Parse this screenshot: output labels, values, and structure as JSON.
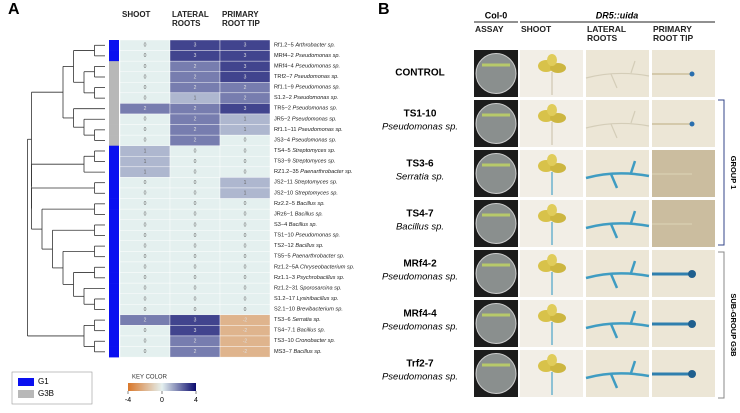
{
  "panel_a": {
    "label": "A",
    "columns": [
      "SHOOT",
      "LATERAL ROOTS",
      "PRIMARY ROOT TIP"
    ],
    "rows": [
      {
        "id": "Rf1.2−5",
        "taxon": "Arthrobacter sp.",
        "group": "G1",
        "values": [
          0,
          3,
          3
        ]
      },
      {
        "id": "MRf4−2",
        "taxon": "Pseudomonas sp.",
        "group": "G1",
        "values": [
          0,
          3,
          3
        ]
      },
      {
        "id": "MRf4−4",
        "taxon": "Pseudomonas sp.",
        "group": "G3B",
        "values": [
          0,
          2,
          3
        ]
      },
      {
        "id": "TRf2−7",
        "taxon": "Pseudomonas sp.",
        "group": "G3B",
        "values": [
          0,
          2,
          3
        ]
      },
      {
        "id": "Rf1.1−9",
        "taxon": "Pseudomonas sp.",
        "group": "G3B",
        "values": [
          0,
          2,
          2
        ]
      },
      {
        "id": "S1.2−2",
        "taxon": "Pseudomonas sp.",
        "group": "G3B",
        "values": [
          0,
          1,
          2
        ]
      },
      {
        "id": "TR5−2",
        "taxon": "Pseudomonas sp.",
        "group": "G3B",
        "values": [
          2,
          2,
          3
        ]
      },
      {
        "id": "JR5−2",
        "taxon": "Pseudomonas sp.",
        "group": "G3B",
        "values": [
          0,
          2,
          1
        ]
      },
      {
        "id": "Rf1.1−11",
        "taxon": "Pseudomonas sp.",
        "group": "G3B",
        "values": [
          0,
          2,
          1
        ]
      },
      {
        "id": "JS3−4",
        "taxon": "Pseudomonas sp.",
        "group": "G3B",
        "values": [
          0,
          2,
          0
        ]
      },
      {
        "id": "TS4−5",
        "taxon": "Streptomyces sp.",
        "group": "G1",
        "values": [
          1,
          0,
          0
        ]
      },
      {
        "id": "TS3−9",
        "taxon": "Streptomyces sp.",
        "group": "G1",
        "values": [
          1,
          0,
          0
        ]
      },
      {
        "id": "RZ1.2−35",
        "taxon": "Paenarthrobacter sp.",
        "group": "G1",
        "values": [
          1,
          0,
          0
        ]
      },
      {
        "id": "JS2−11",
        "taxon": "Streptomyces sp.",
        "group": "G1",
        "values": [
          0,
          0,
          1
        ]
      },
      {
        "id": "JS2−10",
        "taxon": "Streptomyces sp.",
        "group": "G1",
        "values": [
          0,
          0,
          1
        ]
      },
      {
        "id": "Rz2.2−5",
        "taxon": "Bacillus sp.",
        "group": "G1",
        "values": [
          0,
          0,
          0
        ]
      },
      {
        "id": "JRz6−1",
        "taxon": "Bacillus sp.",
        "group": "G1",
        "values": [
          0,
          0,
          0
        ]
      },
      {
        "id": "S3−4",
        "taxon": "Bacillus sp.",
        "group": "G1",
        "values": [
          0,
          0,
          0
        ]
      },
      {
        "id": "TS1−10",
        "taxon": "Pseudomonas sp.",
        "group": "G1",
        "values": [
          0,
          0,
          0
        ]
      },
      {
        "id": "TS2−12",
        "taxon": "Bacillus sp.",
        "group": "G1",
        "values": [
          0,
          0,
          0
        ]
      },
      {
        "id": "TS5−5",
        "taxon": "Paenarthrobacter sp.",
        "group": "G1",
        "values": [
          0,
          0,
          0
        ]
      },
      {
        "id": "Rz1.2−5A",
        "taxon": "Chryseobacterium sp.",
        "group": "G1",
        "values": [
          0,
          0,
          0
        ]
      },
      {
        "id": "Rz1.1−3",
        "taxon": "Psychrobacillus sp.",
        "group": "G1",
        "values": [
          0,
          0,
          0
        ]
      },
      {
        "id": "Rz1.2−31",
        "taxon": "Sporosarcina sp.",
        "group": "G1",
        "values": [
          0,
          0,
          0
        ]
      },
      {
        "id": "S1.2−17",
        "taxon": "Lysinibacillus sp.",
        "group": "G1",
        "values": [
          0,
          0,
          0
        ]
      },
      {
        "id": "S2.1−10",
        "taxon": "Brevibacterium sp.",
        "group": "G1",
        "values": [
          0,
          0,
          0
        ]
      },
      {
        "id": "TS3−6",
        "taxon": "Serratia sp.",
        "group": "G1",
        "values": [
          2,
          3,
          -2
        ]
      },
      {
        "id": "TS4−7.1",
        "taxon": "Bacillus sp.",
        "group": "G1",
        "values": [
          0,
          3,
          -2
        ]
      },
      {
        "id": "TS3−10",
        "taxon": "Cronobacter sp.",
        "group": "G1",
        "values": [
          0,
          2,
          -2
        ]
      },
      {
        "id": "MS3−7",
        "taxon": "Bacillus sp.",
        "group": "G1",
        "values": [
          0,
          2,
          -2
        ]
      }
    ],
    "groups": [
      {
        "name": "G1",
        "color": "#0a10f0"
      },
      {
        "name": "G3B",
        "color": "#b8b8b8"
      }
    ],
    "key": {
      "title": "KEY COLOR",
      "lim": [
        -4,
        4
      ],
      "ticks": [
        -4,
        0,
        4
      ],
      "low_color": "#d9772a",
      "mid_color": "#e4f0ef",
      "high_color": "#0a0a6e"
    }
  },
  "panel_b": {
    "label": "B",
    "control_header": "Col-0",
    "reporter_header": "DR5::uida",
    "columns": [
      "ASSAY",
      "SHOOT",
      "LATERAL ROOTS",
      "PRIMARY ROOT TIP"
    ],
    "rows": [
      {
        "id": "CONTROL"
      },
      {
        "id": "TS1-10",
        "taxon": "Pseudomonas sp."
      },
      {
        "id": "TS3-6",
        "taxon": "Serratia sp."
      },
      {
        "id": "TS4-7",
        "taxon": "Bacillus sp."
      },
      {
        "id": "MRf4-2",
        "taxon": "Pseudomonas sp."
      },
      {
        "id": "MRf4-4",
        "taxon": "Pseudomonas sp."
      },
      {
        "id": "Trf2-7",
        "taxon": "Pseudomonas sp."
      }
    ],
    "brackets": [
      "GROUP 1",
      "SUB-GROUP G3B"
    ]
  }
}
